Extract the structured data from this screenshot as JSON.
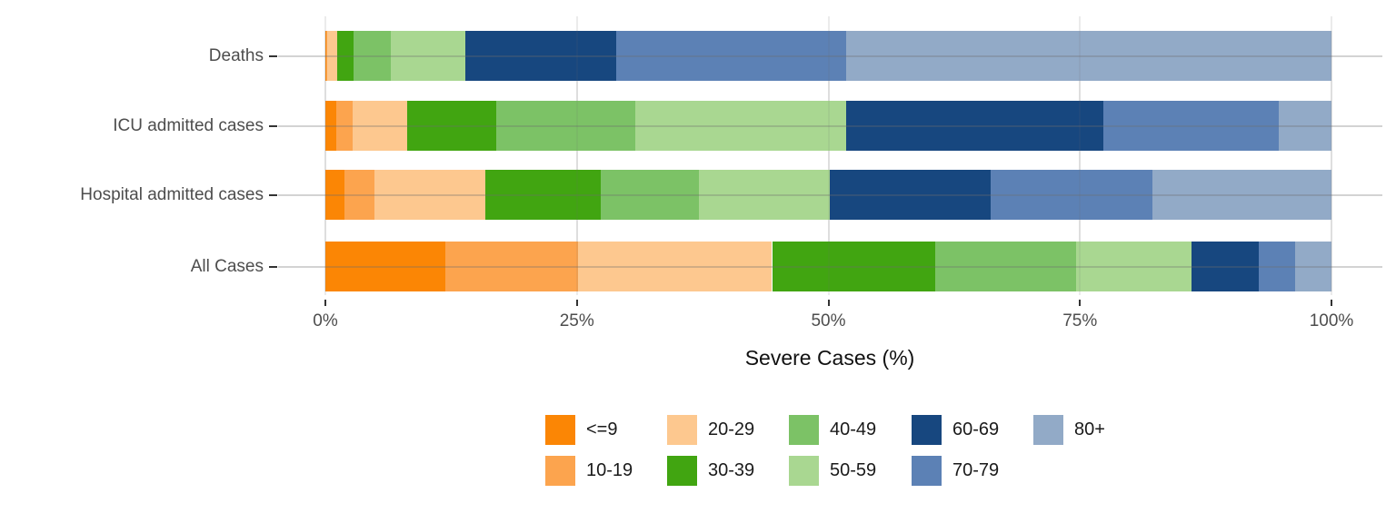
{
  "chart_data": {
    "type": "bar",
    "variant": "horizontal-stacked-100pct",
    "title": "",
    "xlabel": "Severe Cases (%)",
    "ylabel": "",
    "xlim": [
      0,
      100
    ],
    "x_ticks": [
      {
        "label": "0%",
        "value": 0
      },
      {
        "label": "25%",
        "value": 25
      },
      {
        "label": "50%",
        "value": 50
      },
      {
        "label": "75%",
        "value": 75
      },
      {
        "label": "100%",
        "value": 100
      }
    ],
    "grid": "major-gridlines-visible-through-translucent-bars",
    "categories": [
      "Deaths",
      "ICU admitted cases",
      "Hospital admitted cases",
      "All Cases"
    ],
    "series": [
      {
        "name": "<=9",
        "color": "#FB8605",
        "values": [
          0.1,
          1.1,
          1.9,
          11.9
        ]
      },
      {
        "name": "10-19",
        "color": "#FCA44E",
        "values": [
          0.1,
          1.6,
          3.0,
          13.2
        ]
      },
      {
        "name": "20-29",
        "color": "#FDC88F",
        "values": [
          1.0,
          5.4,
          11.0,
          19.3
        ]
      },
      {
        "name": "30-39",
        "color": "#41A511",
        "values": [
          1.6,
          8.9,
          11.5,
          16.2
        ]
      },
      {
        "name": "40-49",
        "color": "#7CC266",
        "values": [
          3.7,
          13.8,
          9.7,
          14.0
        ]
      },
      {
        "name": "50-59",
        "color": "#A9D791",
        "values": [
          7.4,
          21.0,
          13.0,
          11.5
        ]
      },
      {
        "name": "60-69",
        "color": "#17477F",
        "values": [
          15.0,
          25.5,
          16.0,
          6.7
        ]
      },
      {
        "name": "70-79",
        "color": "#5C81B5",
        "values": [
          22.9,
          17.5,
          16.1,
          3.6
        ]
      },
      {
        "name": "80+",
        "color": "#92AAC7",
        "values": [
          48.2,
          5.2,
          17.8,
          3.6
        ]
      }
    ],
    "legend": {
      "position": "bottom",
      "columns": [
        [
          "<=9",
          "10-19"
        ],
        [
          "20-29",
          "30-39"
        ],
        [
          "40-49",
          "50-59"
        ],
        [
          "60-69",
          "70-79"
        ],
        [
          "80+"
        ]
      ]
    }
  }
}
